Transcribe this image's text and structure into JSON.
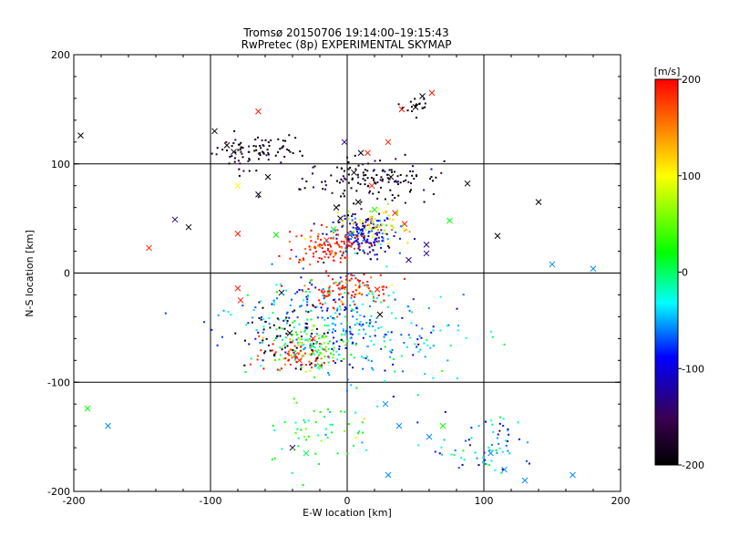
{
  "chart_data": {
    "type": "scatter",
    "title_line1": "Tromsø 20150706 19:14:00–19:15:43",
    "title_line2": "RwPretec (8p) EXPERIMENTAL SKYMAP",
    "xlabel": "E-W location [km]",
    "ylabel": "N-S location [km]",
    "xlim": [
      -200,
      200
    ],
    "ylim": [
      -200,
      200
    ],
    "xticks": [
      -200,
      -100,
      0,
      100,
      200
    ],
    "yticks": [
      -200,
      -100,
      0,
      100,
      200
    ],
    "grid": true,
    "colorbar": {
      "unit_label": "[m/s]",
      "min": -200,
      "max": 200,
      "ticks": [
        200,
        100,
        0,
        -100,
        -200
      ],
      "colors": [
        "#000000",
        "#3a0050",
        "#0000ff",
        "#00ffff",
        "#00ff00",
        "#ffff00",
        "#ff0000"
      ]
    },
    "series": [
      {
        "marker": "x",
        "points": [
          [
            -195,
            126,
            -200
          ],
          [
            -190,
            -124,
            20
          ],
          [
            -175,
            -140,
            -60
          ],
          [
            -145,
            23,
            190
          ],
          [
            -126,
            49,
            -130
          ],
          [
            -116,
            42,
            -200
          ],
          [
            -97,
            130,
            -200
          ],
          [
            -88,
            117,
            -200
          ],
          [
            -83,
            111,
            -200
          ],
          [
            -80,
            80,
            100
          ],
          [
            -80,
            36,
            190
          ],
          [
            -80,
            -14,
            190
          ],
          [
            -78,
            -25,
            190
          ],
          [
            -65,
            148,
            190
          ],
          [
            -65,
            72,
            -200
          ],
          [
            -58,
            88,
            -200
          ],
          [
            -52,
            35,
            20
          ],
          [
            -48,
            -18,
            -200
          ],
          [
            -42,
            -55,
            -200
          ],
          [
            -38,
            -75,
            190
          ],
          [
            -35,
            -80,
            190
          ],
          [
            -30,
            -165,
            0
          ],
          [
            -25,
            -60,
            190
          ],
          [
            -20,
            -85,
            20
          ],
          [
            -15,
            30,
            190
          ],
          [
            -10,
            40,
            20
          ],
          [
            -8,
            60,
            -200
          ],
          [
            -5,
            50,
            -200
          ],
          [
            -2,
            120,
            -130
          ],
          [
            2,
            35,
            -130
          ],
          [
            5,
            92,
            -200
          ],
          [
            8,
            65,
            -200
          ],
          [
            10,
            110,
            -200
          ],
          [
            15,
            110,
            190
          ],
          [
            18,
            80,
            190
          ],
          [
            20,
            58,
            20
          ],
          [
            22,
            -15,
            190
          ],
          [
            24,
            -38,
            -200
          ],
          [
            28,
            -120,
            -60
          ],
          [
            30,
            120,
            190
          ],
          [
            30,
            -185,
            -60
          ],
          [
            32,
            88,
            -200
          ],
          [
            35,
            55,
            190
          ],
          [
            38,
            -140,
            -60
          ],
          [
            40,
            150,
            190
          ],
          [
            42,
            45,
            190
          ],
          [
            45,
            12,
            -130
          ],
          [
            50,
            152,
            -200
          ],
          [
            55,
            162,
            -200
          ],
          [
            58,
            26,
            -130
          ],
          [
            58,
            18,
            -130
          ],
          [
            62,
            165,
            190
          ],
          [
            75,
            48,
            20
          ],
          [
            88,
            82,
            -200
          ],
          [
            110,
            34,
            -200
          ],
          [
            140,
            65,
            -200
          ],
          [
            150,
            8,
            -60
          ],
          [
            165,
            -185,
            -60
          ],
          [
            180,
            4,
            -60
          ],
          [
            -40,
            -160,
            -130
          ],
          [
            60,
            -150,
            -60
          ],
          [
            70,
            -140,
            20
          ],
          [
            105,
            -165,
            -60
          ],
          [
            115,
            -180,
            -60
          ],
          [
            130,
            -190,
            -60
          ]
        ]
      },
      {
        "marker": "dot",
        "clusters": [
          {
            "cx": -75,
            "cy": 110,
            "sx": 12,
            "sy": 8,
            "n": 60,
            "v": -200
          },
          {
            "cx": -50,
            "cy": 115,
            "sx": 8,
            "sy": 6,
            "n": 25,
            "v": -200
          },
          {
            "cx": 20,
            "cy": 85,
            "sx": 25,
            "sy": 10,
            "n": 140,
            "v": -190
          },
          {
            "cx": 50,
            "cy": 155,
            "sx": 6,
            "sy": 6,
            "n": 18,
            "v": -200
          },
          {
            "cx": 10,
            "cy": 35,
            "sx": 12,
            "sy": 10,
            "n": 180,
            "v": -110
          },
          {
            "cx": -15,
            "cy": 25,
            "sx": 14,
            "sy": 8,
            "n": 110,
            "v": 190
          },
          {
            "cx": 20,
            "cy": 45,
            "sx": 12,
            "sy": 8,
            "n": 60,
            "v": 100
          },
          {
            "cx": 0,
            "cy": -15,
            "sx": 16,
            "sy": 8,
            "n": 100,
            "v": 190
          },
          {
            "cx": -20,
            "cy": -40,
            "sx": 30,
            "sy": 20,
            "n": 180,
            "v": -60
          },
          {
            "cx": 15,
            "cy": -60,
            "sx": 35,
            "sy": 20,
            "n": 180,
            "v": -55
          },
          {
            "cx": -25,
            "cy": -65,
            "sx": 15,
            "sy": 10,
            "n": 90,
            "v": 20
          },
          {
            "cx": -35,
            "cy": -75,
            "sx": 14,
            "sy": 8,
            "n": 60,
            "v": 190
          },
          {
            "cx": -20,
            "cy": -140,
            "sx": 20,
            "sy": 20,
            "n": 60,
            "v": 20
          },
          {
            "cx": 100,
            "cy": -160,
            "sx": 20,
            "sy": 15,
            "n": 70,
            "v": -60
          },
          {
            "cx": -45,
            "cy": -60,
            "sx": 15,
            "sy": 15,
            "n": 50,
            "v": -200
          }
        ]
      }
    ]
  }
}
